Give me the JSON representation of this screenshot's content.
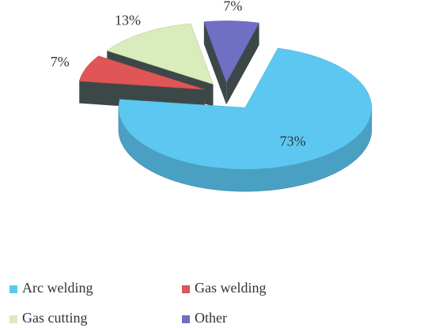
{
  "chart_data": {
    "type": "pie",
    "categories": [
      "Arc welding",
      "Gas welding",
      "Gas cutting",
      "Other"
    ],
    "values": [
      73,
      7,
      13,
      7
    ],
    "value_labels": [
      "73%",
      "7%",
      "13%",
      "7%"
    ],
    "colors": [
      "#5cc8f2",
      "#e05555",
      "#d9ecbb",
      "#6f6fc4"
    ],
    "legend": "bottom"
  }
}
